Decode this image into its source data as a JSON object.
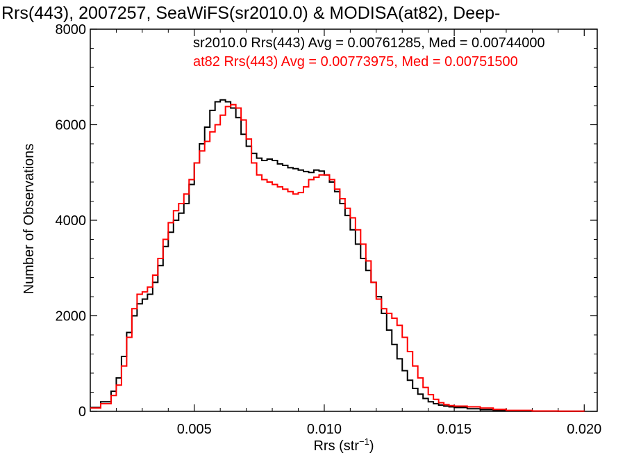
{
  "chart_data": {
    "type": "line",
    "title": "Rrs(443), 2007257, SeaWiFS(sr2010.0) & MODISA(at82), Deep-",
    "xlabel": "Rrs (str",
    "xlabel_sup": "−1",
    "xlabel_close": ")",
    "ylabel": "Number of Observations",
    "xlim": [
      0.001,
      0.0205
    ],
    "ylim": [
      0,
      8000
    ],
    "x_ticks": [
      0.005,
      0.01,
      0.015,
      0.02
    ],
    "x_tick_labels": [
      "0.005",
      "0.010",
      "0.015",
      "0.020"
    ],
    "y_ticks": [
      0,
      2000,
      4000,
      6000,
      8000
    ],
    "y_tick_labels": [
      "0",
      "2000",
      "4000",
      "6000",
      "8000"
    ],
    "grid": false,
    "legend_position": "top-right",
    "series": [
      {
        "name": "sr2010.0 Rrs(443) Avg = 0.00761285, Med = 0.00744000",
        "color": "#000000",
        "points": [
          [
            0.001,
            80
          ],
          [
            0.0014,
            200
          ],
          [
            0.0018,
            420
          ],
          [
            0.002,
            700
          ],
          [
            0.0022,
            1150
          ],
          [
            0.0024,
            1650
          ],
          [
            0.0026,
            2000
          ],
          [
            0.0028,
            2250
          ],
          [
            0.003,
            2350
          ],
          [
            0.0032,
            2450
          ],
          [
            0.0034,
            2700
          ],
          [
            0.0036,
            3050
          ],
          [
            0.0038,
            3450
          ],
          [
            0.004,
            3750
          ],
          [
            0.0042,
            4000
          ],
          [
            0.0044,
            4150
          ],
          [
            0.0046,
            4350
          ],
          [
            0.0048,
            4750
          ],
          [
            0.005,
            5200
          ],
          [
            0.0052,
            5600
          ],
          [
            0.0054,
            5950
          ],
          [
            0.0056,
            6300
          ],
          [
            0.0058,
            6480
          ],
          [
            0.006,
            6520
          ],
          [
            0.0062,
            6480
          ],
          [
            0.0064,
            6350
          ],
          [
            0.0066,
            6150
          ],
          [
            0.0068,
            5800
          ],
          [
            0.007,
            5550
          ],
          [
            0.0072,
            5400
          ],
          [
            0.0074,
            5300
          ],
          [
            0.0076,
            5250
          ],
          [
            0.0078,
            5280
          ],
          [
            0.008,
            5250
          ],
          [
            0.0082,
            5180
          ],
          [
            0.0084,
            5150
          ],
          [
            0.0086,
            5100
          ],
          [
            0.0088,
            5080
          ],
          [
            0.009,
            5050
          ],
          [
            0.0092,
            5020
          ],
          [
            0.0094,
            5000
          ],
          [
            0.0096,
            5050
          ],
          [
            0.0098,
            5030
          ],
          [
            0.01,
            4950
          ],
          [
            0.0102,
            4800
          ],
          [
            0.0104,
            4600
          ],
          [
            0.0106,
            4350
          ],
          [
            0.0108,
            4100
          ],
          [
            0.011,
            3800
          ],
          [
            0.0112,
            3500
          ],
          [
            0.0114,
            3200
          ],
          [
            0.0116,
            2950
          ],
          [
            0.0118,
            2700
          ],
          [
            0.012,
            2400
          ],
          [
            0.0122,
            2050
          ],
          [
            0.0124,
            1700
          ],
          [
            0.0126,
            1400
          ],
          [
            0.0128,
            1100
          ],
          [
            0.013,
            850
          ],
          [
            0.0132,
            650
          ],
          [
            0.0134,
            480
          ],
          [
            0.0136,
            360
          ],
          [
            0.0138,
            270
          ],
          [
            0.014,
            200
          ],
          [
            0.0142,
            160
          ],
          [
            0.0144,
            130
          ],
          [
            0.0146,
            110
          ],
          [
            0.0148,
            95
          ],
          [
            0.015,
            80
          ],
          [
            0.0155,
            55
          ],
          [
            0.016,
            35
          ],
          [
            0.0165,
            20
          ],
          [
            0.017,
            10
          ],
          [
            0.018,
            5
          ],
          [
            0.019,
            2
          ],
          [
            0.02,
            0
          ]
        ]
      },
      {
        "name": "at82 Rrs(443) Avg = 0.00773975, Med = 0.00751500",
        "color": "#ff0000",
        "points": [
          [
            0.001,
            70
          ],
          [
            0.0014,
            160
          ],
          [
            0.0018,
            330
          ],
          [
            0.002,
            550
          ],
          [
            0.0022,
            950
          ],
          [
            0.0024,
            1550
          ],
          [
            0.0026,
            2150
          ],
          [
            0.0028,
            2450
          ],
          [
            0.003,
            2500
          ],
          [
            0.0032,
            2600
          ],
          [
            0.0034,
            2850
          ],
          [
            0.0036,
            3200
          ],
          [
            0.0038,
            3600
          ],
          [
            0.004,
            3950
          ],
          [
            0.0042,
            4200
          ],
          [
            0.0044,
            4350
          ],
          [
            0.0046,
            4550
          ],
          [
            0.0048,
            4850
          ],
          [
            0.005,
            5200
          ],
          [
            0.0052,
            5450
          ],
          [
            0.0054,
            5650
          ],
          [
            0.0056,
            5850
          ],
          [
            0.0058,
            6000
          ],
          [
            0.006,
            6200
          ],
          [
            0.0062,
            6380
          ],
          [
            0.0064,
            6420
          ],
          [
            0.0066,
            6350
          ],
          [
            0.0068,
            6100
          ],
          [
            0.007,
            5700
          ],
          [
            0.0072,
            5200
          ],
          [
            0.0074,
            4950
          ],
          [
            0.0076,
            4850
          ],
          [
            0.0078,
            4800
          ],
          [
            0.008,
            4750
          ],
          [
            0.0082,
            4700
          ],
          [
            0.0084,
            4650
          ],
          [
            0.0086,
            4600
          ],
          [
            0.0088,
            4550
          ],
          [
            0.009,
            4580
          ],
          [
            0.0092,
            4700
          ],
          [
            0.0094,
            4850
          ],
          [
            0.0096,
            4900
          ],
          [
            0.0098,
            4950
          ],
          [
            0.01,
            4950
          ],
          [
            0.0102,
            4850
          ],
          [
            0.0104,
            4650
          ],
          [
            0.0106,
            4450
          ],
          [
            0.0108,
            4250
          ],
          [
            0.011,
            4050
          ],
          [
            0.0112,
            3800
          ],
          [
            0.0114,
            3500
          ],
          [
            0.0116,
            3150
          ],
          [
            0.0118,
            2700
          ],
          [
            0.012,
            2350
          ],
          [
            0.0122,
            2150
          ],
          [
            0.0124,
            2050
          ],
          [
            0.0126,
            1950
          ],
          [
            0.0128,
            1800
          ],
          [
            0.013,
            1550
          ],
          [
            0.0132,
            1250
          ],
          [
            0.0134,
            950
          ],
          [
            0.0136,
            700
          ],
          [
            0.0138,
            500
          ],
          [
            0.014,
            350
          ],
          [
            0.0142,
            250
          ],
          [
            0.0144,
            180
          ],
          [
            0.0146,
            140
          ],
          [
            0.0148,
            120
          ],
          [
            0.015,
            110
          ],
          [
            0.0155,
            95
          ],
          [
            0.016,
            70
          ],
          [
            0.0165,
            40
          ],
          [
            0.017,
            20
          ],
          [
            0.018,
            8
          ],
          [
            0.019,
            3
          ],
          [
            0.02,
            0
          ]
        ]
      }
    ]
  }
}
